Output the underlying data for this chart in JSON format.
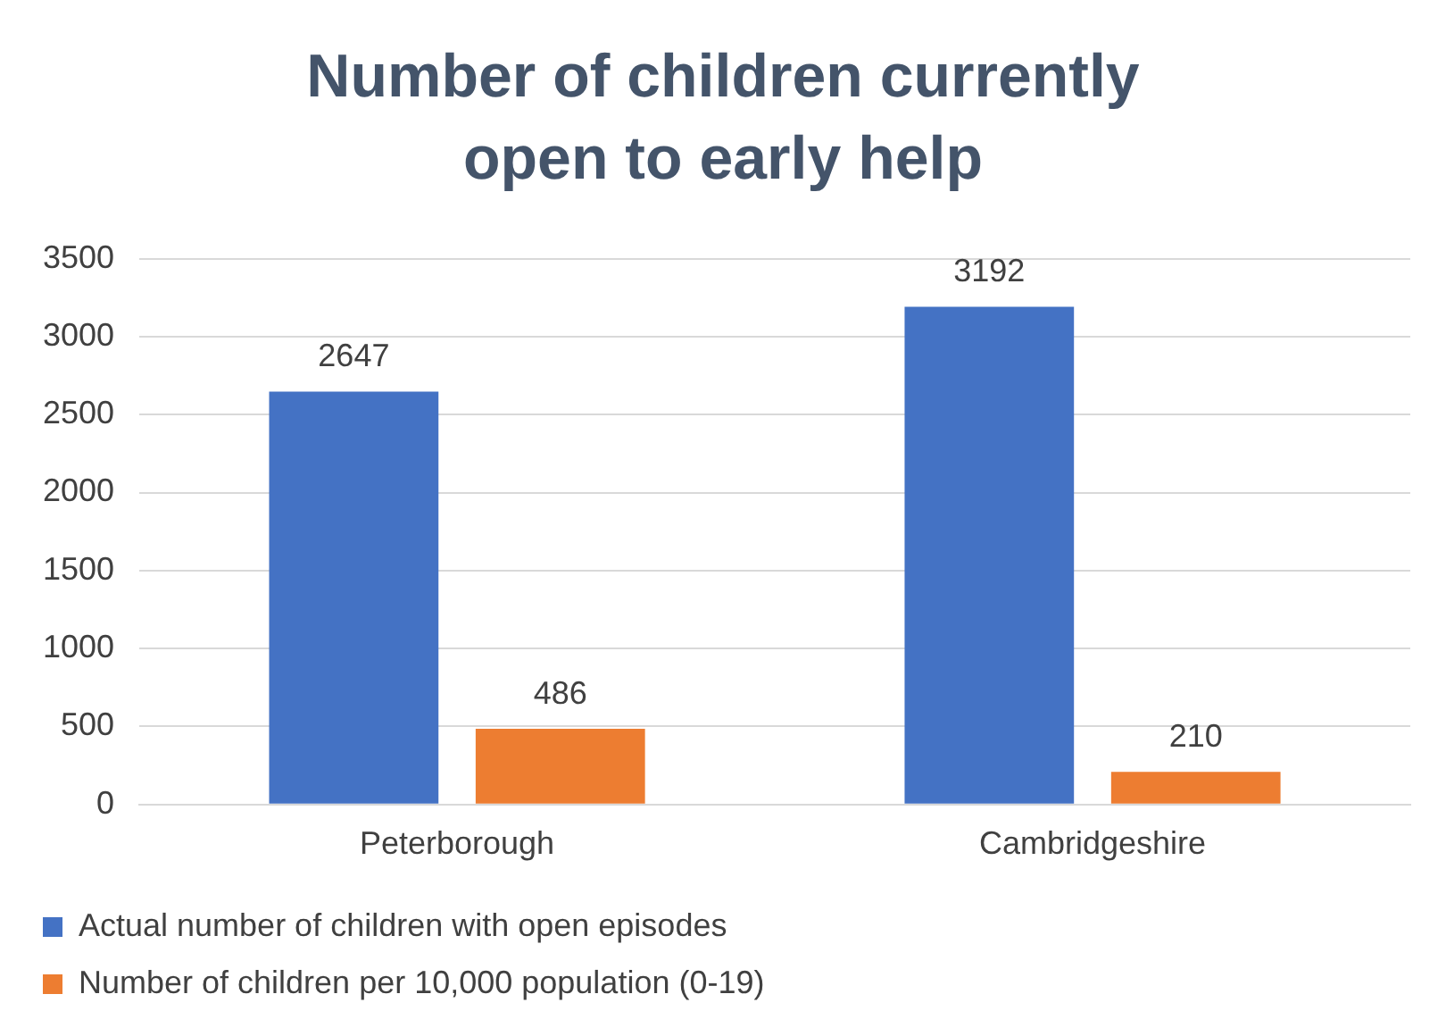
{
  "chart_data": {
    "type": "bar",
    "title": "Number of children currently open to early help",
    "categories": [
      "Peterborough",
      "Cambridgeshire"
    ],
    "series": [
      {
        "name": "Actual number of children with open episodes",
        "color": "#4472c4",
        "values": [
          2647,
          3192
        ]
      },
      {
        "name": "Number of children per 10,000 population (0-19)",
        "color": "#ed7d31",
        "values": [
          486,
          210
        ]
      }
    ],
    "ylim": [
      0,
      3500
    ],
    "yticks": [
      0,
      500,
      1000,
      1500,
      2000,
      2500,
      3000,
      3500
    ],
    "grid": "y",
    "legend": "bottom",
    "data_labels": true
  }
}
